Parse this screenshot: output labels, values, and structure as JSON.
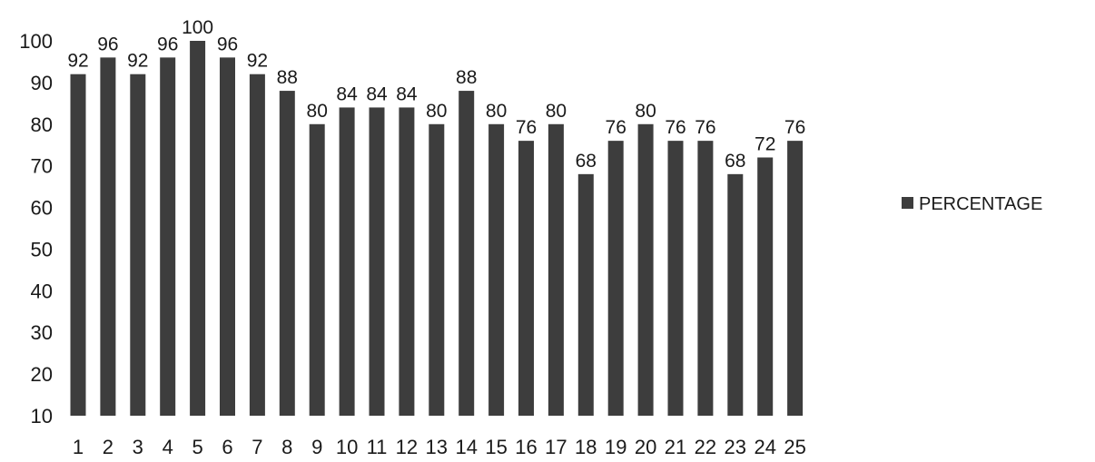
{
  "chart_data": {
    "type": "bar",
    "categories": [
      "1",
      "2",
      "3",
      "4",
      "5",
      "6",
      "7",
      "8",
      "9",
      "10",
      "11",
      "12",
      "13",
      "14",
      "15",
      "16",
      "17",
      "18",
      "19",
      "20",
      "21",
      "22",
      "23",
      "24",
      "25"
    ],
    "series": [
      {
        "name": "PERCENTAGE",
        "values": [
          92,
          96,
          92,
          96,
          100,
          96,
          92,
          88,
          80,
          84,
          84,
          84,
          80,
          88,
          80,
          76,
          80,
          68,
          76,
          80,
          76,
          76,
          68,
          72,
          76
        ]
      }
    ],
    "data_labels": [
      "92",
      "96",
      "92",
      "96",
      "100",
      "96",
      "92",
      "88",
      "80",
      "84",
      "84",
      "84",
      "80",
      "88",
      "80",
      "76",
      "80",
      "68",
      "76",
      "80",
      "76",
      "76",
      "68",
      "72",
      "76"
    ],
    "ylim": [
      10,
      100
    ],
    "yticks": [
      "10",
      "20",
      "30",
      "40",
      "50",
      "60",
      "70",
      "80",
      "90",
      "100"
    ],
    "title": "",
    "xlabel": "",
    "ylabel": "",
    "grid": false,
    "legend_position": "right",
    "bar_color": "#3d3d3d"
  },
  "legend": {
    "label": "PERCENTAGE"
  }
}
